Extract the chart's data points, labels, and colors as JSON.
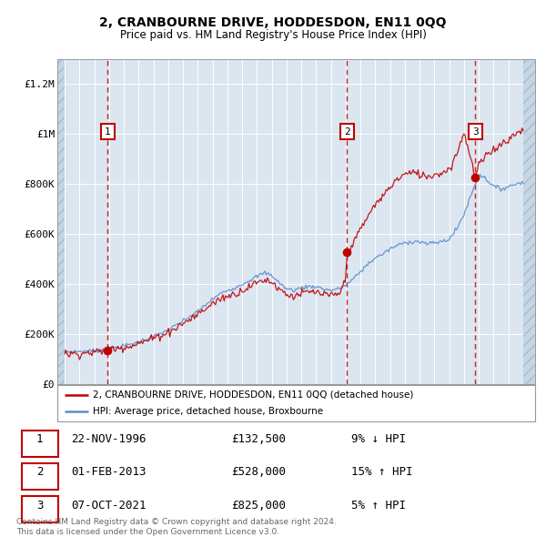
{
  "title": "2, CRANBOURNE DRIVE, HODDESDON, EN11 0QQ",
  "subtitle": "Price paid vs. HM Land Registry's House Price Index (HPI)",
  "title_fontsize": 10,
  "subtitle_fontsize": 8.5,
  "ylim": [
    0,
    1300000
  ],
  "xlim_start": 1993.5,
  "xlim_end": 2025.8,
  "yticks": [
    0,
    200000,
    400000,
    600000,
    800000,
    1000000,
    1200000
  ],
  "ytick_labels": [
    "£0",
    "£200K",
    "£400K",
    "£600K",
    "£800K",
    "£1M",
    "£1.2M"
  ],
  "xticks": [
    1994,
    1995,
    1996,
    1997,
    1998,
    1999,
    2000,
    2001,
    2002,
    2003,
    2004,
    2005,
    2006,
    2007,
    2008,
    2009,
    2010,
    2011,
    2012,
    2013,
    2014,
    2015,
    2016,
    2017,
    2018,
    2019,
    2020,
    2021,
    2022,
    2023,
    2024,
    2025
  ],
  "hpi_color": "#5b8ec9",
  "price_color": "#C00000",
  "sale_marker_color": "#C00000",
  "sale1_x": 1996.9,
  "sale1_y": 132500,
  "sale1_label": "1",
  "sale1_date": "22-NOV-1996",
  "sale1_price": "£132,500",
  "sale1_pct": "9% ↓ HPI",
  "sale2_x": 2013.08,
  "sale2_y": 528000,
  "sale2_label": "2",
  "sale2_date": "01-FEB-2013",
  "sale2_price": "£528,000",
  "sale2_pct": "15% ↑ HPI",
  "sale3_x": 2021.77,
  "sale3_y": 825000,
  "sale3_label": "3",
  "sale3_date": "07-OCT-2021",
  "sale3_price": "£825,000",
  "sale3_pct": "5% ↑ HPI",
  "legend_line1": "2, CRANBOURNE DRIVE, HODDESDON, EN11 0QQ (detached house)",
  "legend_line2": "HPI: Average price, detached house, Broxbourne",
  "footnote": "Contains HM Land Registry data © Crown copyright and database right 2024.\nThis data is licensed under the Open Government Licence v3.0.",
  "background_color": "#ffffff",
  "plot_bg_color": "#dce6f1",
  "grid_color": "#ffffff"
}
